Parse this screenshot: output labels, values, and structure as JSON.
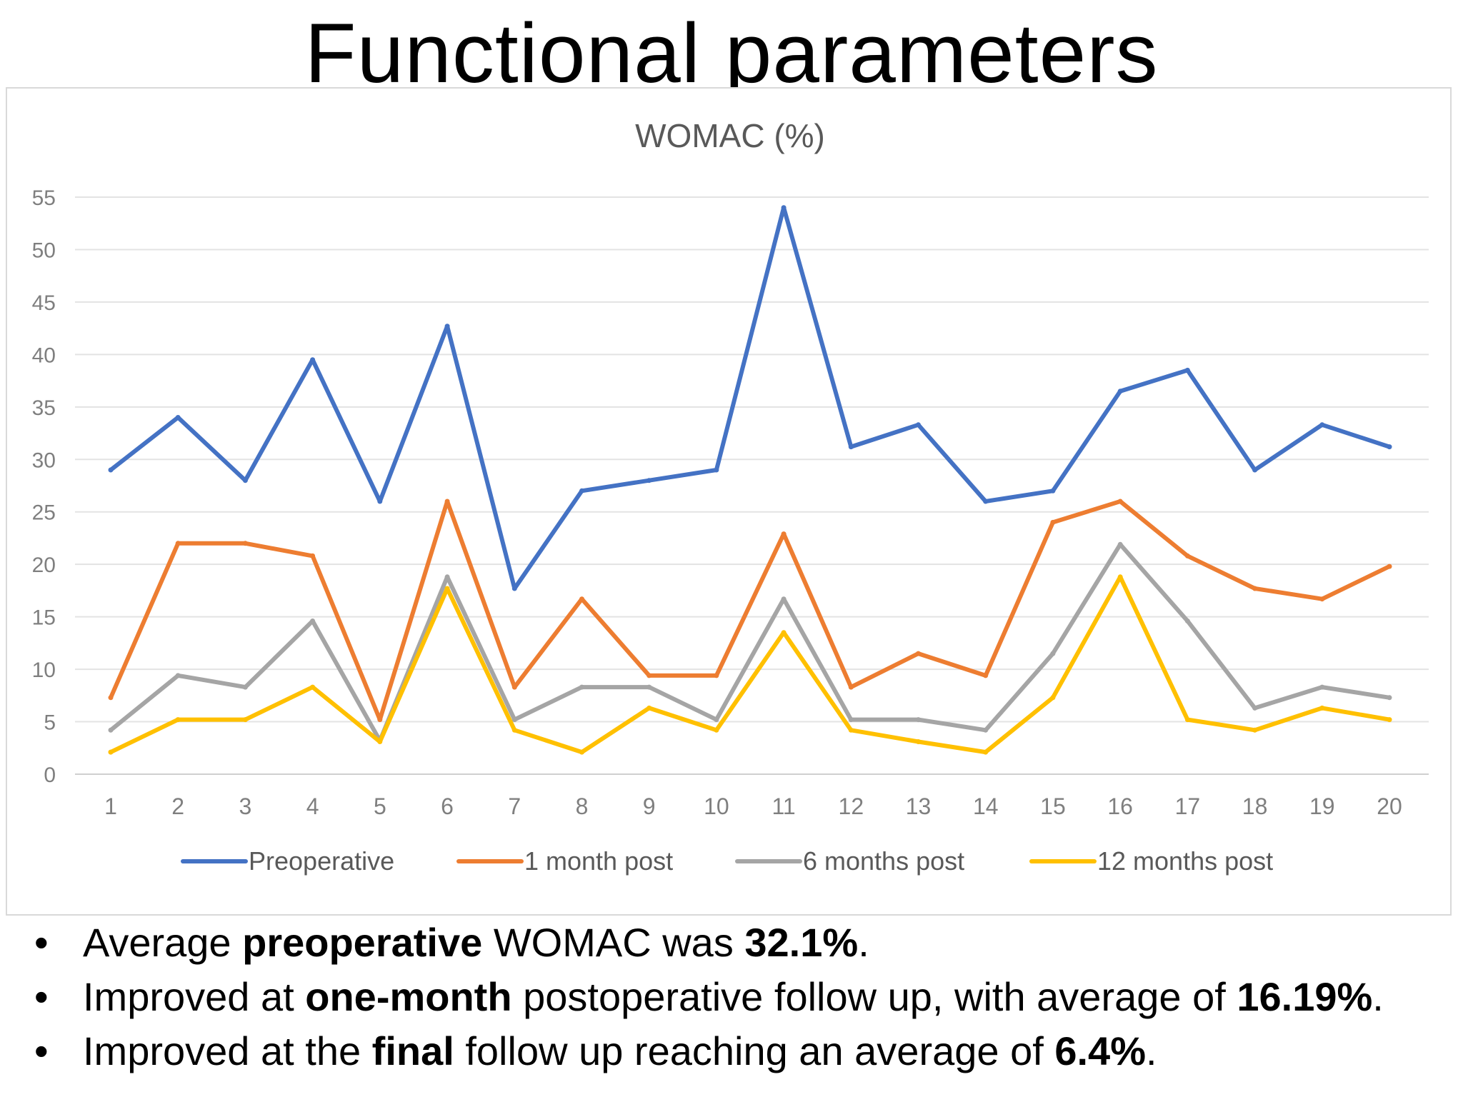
{
  "slide": {
    "title": "Functional parameters"
  },
  "bullets": [
    {
      "pre": "Average ",
      "bold1": "preoperative",
      "mid": " WOMAC was ",
      "bold2": "32.1%",
      "post": "."
    },
    {
      "pre": "Improved at ",
      "bold1": "one-month",
      "mid": " postoperative follow up, with average of ",
      "bold2": "16.19%",
      "post": "."
    },
    {
      "pre": "Improved at the ",
      "bold1": "final",
      "mid": " follow up reaching an average of ",
      "bold2": "6.4%",
      "post": "."
    }
  ],
  "bullet_glyph": "•",
  "chart_data": {
    "type": "line",
    "title": "WOMAC (%)",
    "xlabel": "",
    "ylabel": "",
    "ylim": [
      0,
      55
    ],
    "yticks": [
      0,
      5,
      10,
      15,
      20,
      25,
      30,
      35,
      40,
      45,
      50,
      55
    ],
    "categories": [
      "1",
      "2",
      "3",
      "4",
      "5",
      "6",
      "7",
      "8",
      "9",
      "10",
      "11",
      "12",
      "13",
      "14",
      "15",
      "16",
      "17",
      "18",
      "19",
      "20"
    ],
    "grid": true,
    "legend_position": "bottom",
    "series": [
      {
        "name": "Preoperative",
        "color": "#4472c4",
        "values": [
          29,
          34,
          28,
          39.5,
          26,
          42.7,
          17.7,
          27,
          28,
          29,
          54,
          31.2,
          33.3,
          26,
          27,
          36.5,
          38.5,
          29,
          33.3,
          31.2
        ]
      },
      {
        "name": "1 month post",
        "color": "#ed7d31",
        "values": [
          7.3,
          22,
          22,
          20.8,
          5.2,
          26,
          8.3,
          16.7,
          9.4,
          9.4,
          22.9,
          8.3,
          11.5,
          9.4,
          24,
          26,
          20.8,
          17.7,
          16.7,
          19.8
        ]
      },
      {
        "name": "6 months post",
        "color": "#a5a5a5",
        "values": [
          4.2,
          9.4,
          8.3,
          14.6,
          3.2,
          18.8,
          5.2,
          8.3,
          8.3,
          5.2,
          16.7,
          5.2,
          5.2,
          4.2,
          11.5,
          21.9,
          14.6,
          6.3,
          8.3,
          7.3
        ]
      },
      {
        "name": "12 months post",
        "color": "#ffc000",
        "values": [
          2.1,
          5.2,
          5.2,
          8.3,
          3.1,
          17.7,
          4.2,
          2.1,
          6.3,
          4.2,
          13.5,
          4.2,
          3.1,
          2.1,
          7.3,
          18.8,
          5.2,
          4.2,
          6.3,
          5.2
        ]
      }
    ]
  }
}
